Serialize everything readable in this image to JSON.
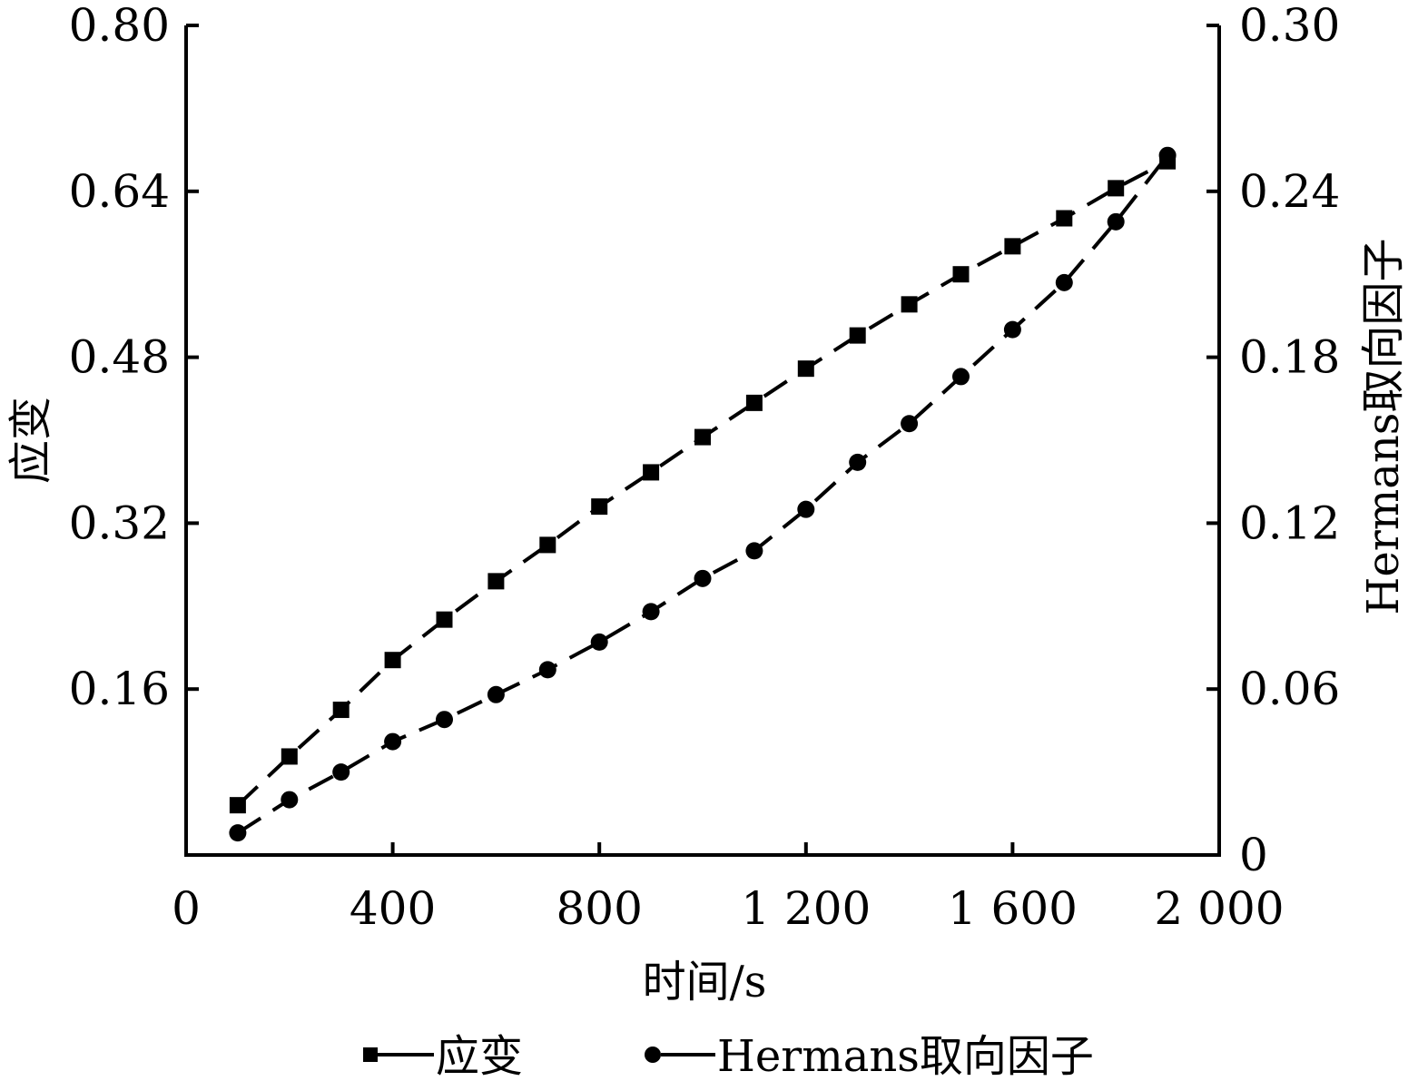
{
  "chart_data": {
    "type": "line",
    "xlabel": "时间/s",
    "ylabel_left": "应变",
    "ylabel_right": "Hermans取向因子",
    "xlim": [
      0,
      2000
    ],
    "ylim_left": [
      0,
      0.8
    ],
    "ylim_right": [
      0,
      0.3
    ],
    "x_ticks": [
      0,
      400,
      800,
      1200,
      1600,
      2000
    ],
    "x_tick_labels": [
      "0",
      "400",
      "800",
      "1 200",
      "1 600",
      "2 000"
    ],
    "y_left_ticks": [
      0.16,
      0.32,
      0.48,
      0.64,
      0.8
    ],
    "y_left_tick_labels": [
      "0.16",
      "0.32",
      "0.48",
      "0.64",
      "0.80"
    ],
    "y_right_ticks": [
      0,
      0.06,
      0.12,
      0.18,
      0.24,
      0.3
    ],
    "y_right_tick_labels": [
      "0",
      "0.06",
      "0.12",
      "0.18",
      "0.24",
      "0.30"
    ],
    "grid": false,
    "legend_position": "bottom",
    "series": [
      {
        "name": "应变",
        "axis": "left",
        "marker": "square",
        "x": [
          100,
          200,
          300,
          400,
          500,
          600,
          700,
          800,
          900,
          1000,
          1100,
          1200,
          1300,
          1400,
          1500,
          1600,
          1700,
          1800,
          1900
        ],
        "values": [
          0.048,
          0.095,
          0.14,
          0.188,
          0.227,
          0.264,
          0.299,
          0.336,
          0.369,
          0.403,
          0.436,
          0.469,
          0.501,
          0.531,
          0.56,
          0.587,
          0.614,
          0.643,
          0.669
        ]
      },
      {
        "name": "Hermans取向因子",
        "axis": "right",
        "marker": "circle",
        "x": [
          100,
          200,
          300,
          400,
          500,
          600,
          700,
          800,
          900,
          1000,
          1100,
          1200,
          1300,
          1400,
          1500,
          1600,
          1700,
          1800,
          1900
        ],
        "values": [
          0.008,
          0.02,
          0.03,
          0.041,
          0.049,
          0.058,
          0.067,
          0.077,
          0.088,
          0.1,
          0.11,
          0.125,
          0.142,
          0.156,
          0.173,
          0.19,
          0.207,
          0.229,
          0.253
        ]
      }
    ],
    "colors": {
      "line": "#000000",
      "marker": "#000000"
    }
  }
}
